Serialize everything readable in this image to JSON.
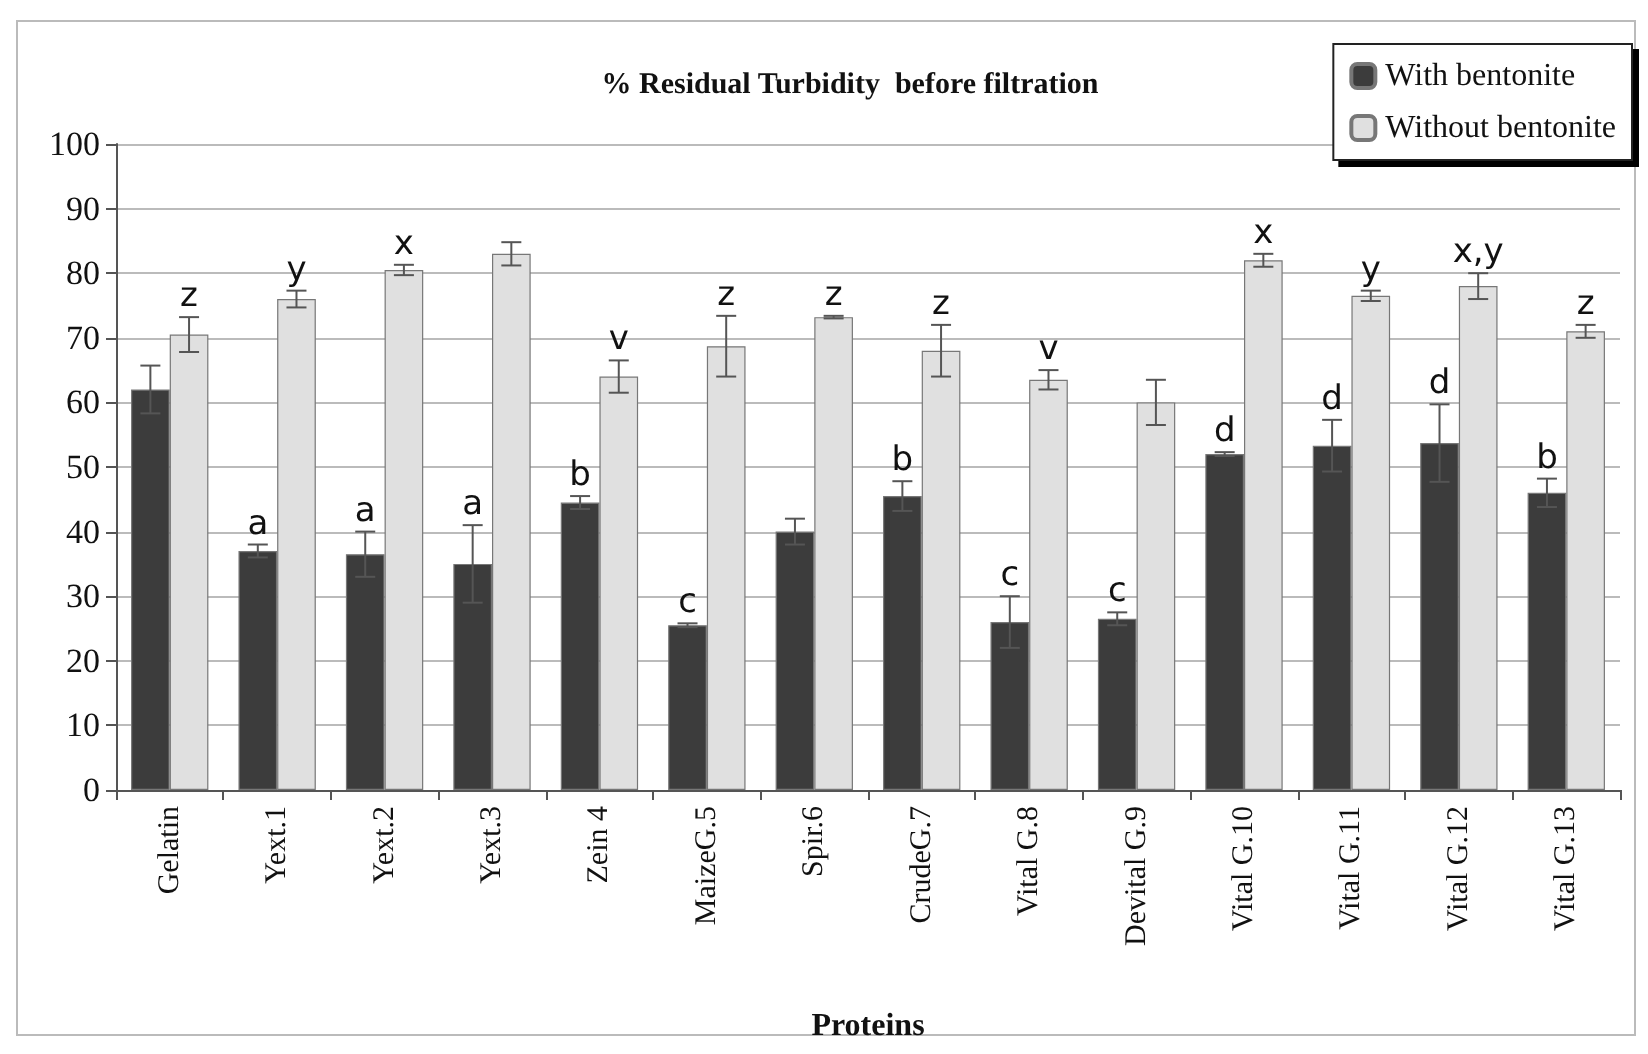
{
  "chart_data": {
    "type": "bar",
    "title": "% Residual Turbidity  before filtration",
    "xlabel": "Proteins",
    "categories": [
      "Gelatin",
      "Yext.1",
      "Yext.2",
      "Yext.3",
      "Zein 4",
      "MaizeG.5",
      "Spir.6",
      "CrudeG.7",
      "Vital G.8",
      "Devital G.9",
      "Vital G.10",
      "Vital G.11",
      "Vital G.12",
      "Vital G.13"
    ],
    "series": [
      {
        "name": "With bentonite",
        "color": "#3c3c3c",
        "values": [
          62,
          37,
          36.5,
          35,
          44.5,
          25.5,
          40,
          45.5,
          26,
          26.5,
          52,
          53.3,
          53.7,
          46
        ],
        "errors": [
          3.7,
          1,
          3.5,
          6,
          1,
          0.3,
          2,
          2.3,
          4,
          1,
          0.3,
          4,
          6,
          2.2
        ],
        "value_labels": [
          null,
          "a",
          "a",
          "a",
          "b",
          "c",
          null,
          "b",
          "c",
          "c",
          "d",
          "d",
          "d",
          "b"
        ]
      },
      {
        "name": "Without bentonite",
        "color": "#e0e0e0",
        "values": [
          70.5,
          76,
          80.5,
          83,
          64,
          68.7,
          73.2,
          68,
          63.5,
          60,
          82,
          76.5,
          78,
          71
        ],
        "errors": [
          2.7,
          1.3,
          0.8,
          1.8,
          2.5,
          4.7,
          0.2,
          4,
          1.5,
          3.5,
          1,
          0.8,
          2,
          1
        ],
        "value_labels": [
          "z",
          "y",
          "x",
          null,
          "v",
          "z",
          "z",
          "z",
          "v",
          null,
          "x",
          "y",
          "x,y",
          "z"
        ]
      }
    ],
    "ylim": [
      0,
      100
    ],
    "yticks": [
      0,
      10,
      20,
      30,
      40,
      50,
      60,
      70,
      80,
      90,
      100
    ],
    "grid": "y",
    "legend": "top right"
  }
}
